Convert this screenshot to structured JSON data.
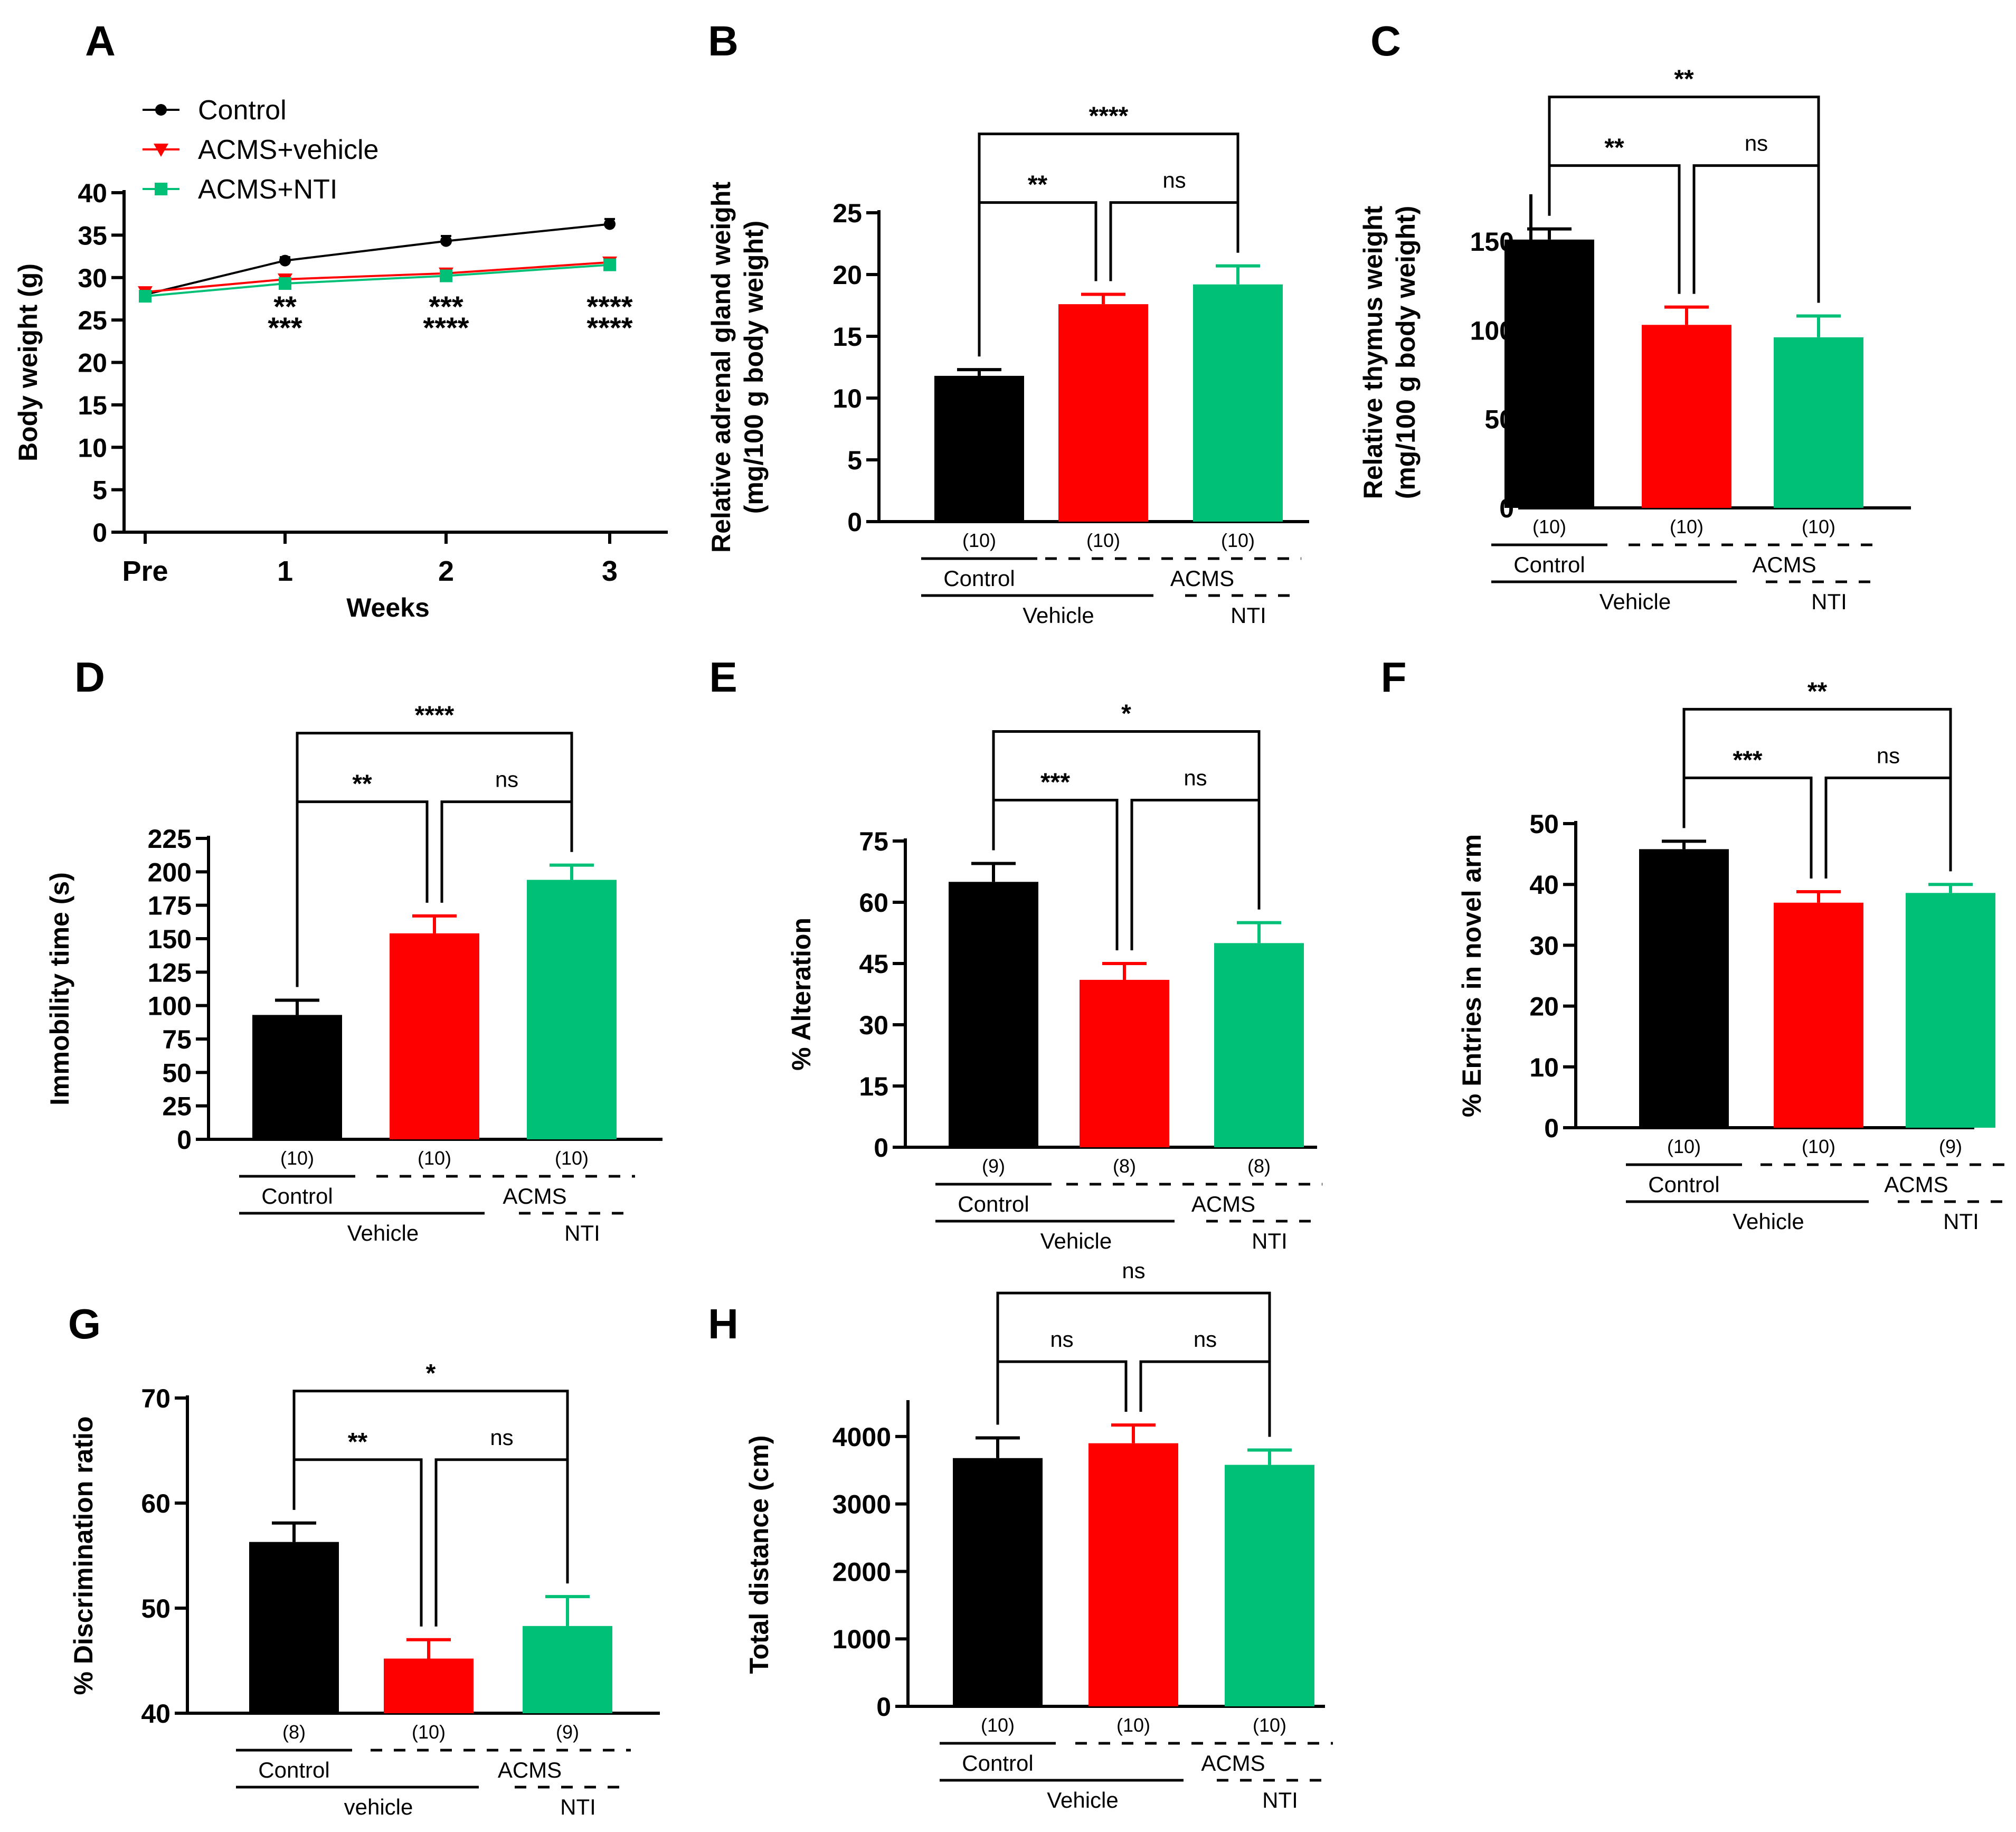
{
  "colors": {
    "control": "#000000",
    "vehicle": "#ff0000",
    "nti": "#00bf76"
  },
  "chart_data": [
    {
      "panel": "A",
      "type": "line",
      "ylabel": "Body weight (g)",
      "xlabel": "Weeks",
      "categories": [
        "Pre",
        "1",
        "2",
        "3"
      ],
      "ylim": [
        0,
        40
      ],
      "yticks": [
        0,
        5,
        10,
        15,
        20,
        25,
        30,
        35,
        40
      ],
      "series": [
        {
          "name": "Control",
          "color_key": "control",
          "marker": "circle",
          "values": [
            28.0,
            32.0,
            34.3,
            36.3
          ],
          "errors": [
            0.5,
            0.4,
            0.6,
            0.6
          ]
        },
        {
          "name": "ACMS+vehicle",
          "color_key": "vehicle",
          "marker": "triangle",
          "values": [
            28.3,
            29.8,
            30.5,
            31.8
          ],
          "errors": [
            0.5,
            0.5,
            0.5,
            0.5
          ]
        },
        {
          "name": "ACMS+NTI",
          "color_key": "nti",
          "marker": "square",
          "values": [
            27.8,
            29.3,
            30.2,
            31.5
          ],
          "errors": [
            0.5,
            0.5,
            0.6,
            0.6
          ]
        }
      ],
      "sig_labels": [
        {
          "x": "1",
          "lines": [
            "**",
            "***"
          ]
        },
        {
          "x": "2",
          "lines": [
            "***",
            "****"
          ]
        },
        {
          "x": "3",
          "lines": [
            "****",
            "****"
          ]
        }
      ]
    },
    {
      "panel": "B",
      "type": "bar",
      "ylabel": [
        "Relative adrenal gland weight",
        "(mg/100 g body weight)"
      ],
      "ylim": [
        0,
        25
      ],
      "yticks": [
        0,
        5,
        10,
        15,
        20,
        25
      ],
      "categories": [
        "Control+Vehicle",
        "ACMS+Vehicle",
        "ACMS+NTI"
      ],
      "values": [
        11.8,
        17.6,
        19.2
      ],
      "errors": [
        0.5,
        0.8,
        1.5
      ],
      "n": [
        "(10)",
        "(10)",
        "(10)"
      ],
      "comparisons": [
        {
          "pair": [
            0,
            1
          ],
          "label": "**"
        },
        {
          "pair": [
            1,
            2
          ],
          "label": "ns"
        },
        {
          "pair": [
            0,
            2
          ],
          "label": "****"
        }
      ],
      "group_labels": {
        "control": "Control",
        "acms": "ACMS",
        "vehicle": "Vehicle",
        "nti": "NTI"
      }
    },
    {
      "panel": "C",
      "type": "bar",
      "ylabel": [
        "Relative thymus weight",
        "(mg/100 g body weight)"
      ],
      "ylim": [
        0,
        175
      ],
      "yticks": [
        0,
        50,
        100,
        150
      ],
      "categories": [
        "Control+Vehicle",
        "ACMS+Vehicle",
        "ACMS+NTI"
      ],
      "values": [
        151,
        103,
        96
      ],
      "errors": [
        6,
        10,
        12
      ],
      "n": [
        "(10)",
        "(10)",
        "(10)"
      ],
      "comparisons": [
        {
          "pair": [
            0,
            1
          ],
          "label": "**"
        },
        {
          "pair": [
            1,
            2
          ],
          "label": "ns"
        },
        {
          "pair": [
            0,
            2
          ],
          "label": "**"
        }
      ],
      "group_labels": {
        "control": "Control",
        "acms": "ACMS",
        "vehicle": "Vehicle",
        "nti": "NTI"
      }
    },
    {
      "panel": "D",
      "type": "bar",
      "ylabel": [
        "Immobility time (s)"
      ],
      "ylim": [
        0,
        225
      ],
      "yticks": [
        0,
        25,
        50,
        75,
        100,
        125,
        150,
        175,
        200,
        225
      ],
      "categories": [
        "Control+Vehicle",
        "ACMS+Vehicle",
        "ACMS+NTI"
      ],
      "values": [
        93,
        154,
        194
      ],
      "errors": [
        11,
        13,
        11
      ],
      "n": [
        "(10)",
        "(10)",
        "(10)"
      ],
      "comparisons": [
        {
          "pair": [
            0,
            1
          ],
          "label": "**"
        },
        {
          "pair": [
            1,
            2
          ],
          "label": "ns"
        },
        {
          "pair": [
            0,
            2
          ],
          "label": "****"
        }
      ],
      "group_labels": {
        "control": "Control",
        "acms": "ACMS",
        "vehicle": "Vehicle",
        "nti": "NTI"
      }
    },
    {
      "panel": "E",
      "type": "bar",
      "ylabel": [
        "% Alteration"
      ],
      "ylim": [
        0,
        75
      ],
      "yticks": [
        0,
        15,
        30,
        45,
        60,
        75
      ],
      "categories": [
        "Control+Vehicle",
        "ACMS+Vehicle",
        "ACMS+NTI"
      ],
      "values": [
        65,
        41,
        50
      ],
      "errors": [
        4.5,
        4,
        5
      ],
      "n": [
        "(9)",
        "(8)",
        "(8)"
      ],
      "comparisons": [
        {
          "pair": [
            0,
            1
          ],
          "label": "***"
        },
        {
          "pair": [
            1,
            2
          ],
          "label": "ns"
        },
        {
          "pair": [
            0,
            2
          ],
          "label": "*"
        }
      ],
      "group_labels": {
        "control": "Control",
        "acms": "ACMS",
        "vehicle": "Vehicle",
        "nti": "NTI"
      }
    },
    {
      "panel": "F",
      "type": "bar",
      "ylabel": [
        "% Entries in novel arm"
      ],
      "ylim": [
        0,
        50
      ],
      "yticks": [
        0,
        10,
        20,
        30,
        40,
        50
      ],
      "categories": [
        "Control+Vehicle",
        "ACMS+Vehicle",
        "ACMS+NTI"
      ],
      "values": [
        45.8,
        37,
        38.6
      ],
      "errors": [
        1.3,
        1.8,
        1.4
      ],
      "n": [
        "(10)",
        "(10)",
        "(9)"
      ],
      "comparisons": [
        {
          "pair": [
            0,
            1
          ],
          "label": "***"
        },
        {
          "pair": [
            1,
            2
          ],
          "label": "ns"
        },
        {
          "pair": [
            0,
            2
          ],
          "label": "**"
        }
      ],
      "group_labels": {
        "control": "Control",
        "acms": "ACMS",
        "vehicle": "Vehicle",
        "nti": "NTI"
      }
    },
    {
      "panel": "G",
      "type": "bar",
      "ylabel": [
        "% Discrimination ratio"
      ],
      "ylim": [
        40,
        70
      ],
      "yticks": [
        40,
        50,
        60,
        70
      ],
      "categories": [
        "Control+vehicle",
        "ACMS+vehicle",
        "ACMS+NTI"
      ],
      "values": [
        56.3,
        45.2,
        48.3
      ],
      "errors": [
        1.8,
        1.8,
        2.8
      ],
      "n": [
        "(8)",
        "(10)",
        "(9)"
      ],
      "comparisons": [
        {
          "pair": [
            0,
            1
          ],
          "label": "**"
        },
        {
          "pair": [
            1,
            2
          ],
          "label": "ns"
        },
        {
          "pair": [
            0,
            2
          ],
          "label": "*"
        }
      ],
      "group_labels": {
        "control": "Control",
        "acms": "ACMS",
        "vehicle": "vehicle",
        "nti": "NTI"
      }
    },
    {
      "panel": "H",
      "type": "bar",
      "ylabel": [
        "Total distance (cm)"
      ],
      "ylim": [
        0,
        4500
      ],
      "yticks": [
        0,
        1000,
        2000,
        3000,
        4000
      ],
      "categories": [
        "Control+Vehicle",
        "ACMS+Vehicle",
        "ACMS+NTI"
      ],
      "values": [
        3680,
        3900,
        3580
      ],
      "errors": [
        300,
        270,
        220
      ],
      "n": [
        "(10)",
        "(10)",
        "(10)"
      ],
      "comparisons": [
        {
          "pair": [
            0,
            1
          ],
          "label": "ns"
        },
        {
          "pair": [
            1,
            2
          ],
          "label": "ns"
        },
        {
          "pair": [
            0,
            2
          ],
          "label": "ns"
        }
      ],
      "group_labels": {
        "control": "Control",
        "acms": "ACMS",
        "vehicle": "Vehicle",
        "nti": "NTI"
      }
    }
  ]
}
